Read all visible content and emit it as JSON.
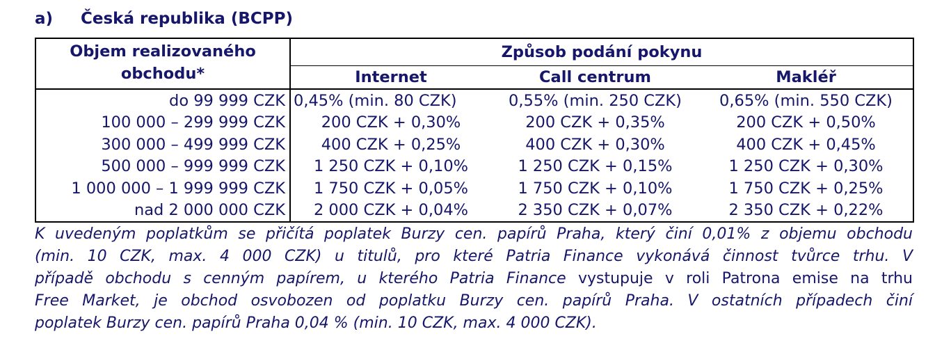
{
  "section": {
    "letter": "a)",
    "title": "Česká republika (BCPP)"
  },
  "table": {
    "volume_header": "Objem realizovaného obchodu*",
    "method_header": "Způsob podání pokynu",
    "channels": [
      "Internet",
      "Call centrum",
      "Makléř"
    ],
    "rows": [
      {
        "volume": "do 99 999 CZK",
        "internet": "0,45% (min. 80 CZK)",
        "call_centrum": "0,55% (min. 250 CZK)",
        "makler": "0,65% (min. 550 CZK)"
      },
      {
        "volume": "100 000 – 299 999 CZK",
        "internet": "200 CZK + 0,30%",
        "call_centrum": "200 CZK + 0,35%",
        "makler": "200 CZK + 0,50%"
      },
      {
        "volume": "300 000 – 499 999 CZK",
        "internet": "400 CZK + 0,25%",
        "call_centrum": "400 CZK + 0,30%",
        "makler": "400 CZK + 0,45%"
      },
      {
        "volume": "500 000 – 999 999 CZK",
        "internet": "1 250 CZK + 0,10%",
        "call_centrum": "1 250 CZK + 0,15%",
        "makler": "1 250 CZK + 0,30%"
      },
      {
        "volume": "1 000 000 – 1 999 999 CZK",
        "internet": "1 750 CZK + 0,05%",
        "call_centrum": "1 750 CZK + 0,10%",
        "makler": "1 750 CZK + 0,25%"
      },
      {
        "volume": "nad 2 000 000 CZK",
        "internet": "2 000 CZK + 0,04%",
        "call_centrum": "2 350 CZK + 0,07%",
        "makler": "2 350 CZK + 0,22%"
      }
    ]
  },
  "note": {
    "lines": [
      "K uvedeným poplatkům se přičítá poplatek Burzy cen. papírů Praha, který činí 0,01% z objemu obchodu",
      "(min. 10 CZK, max. 4 000 CZK) u titulů, pro které Patria Finance vykonává činnost tvůrce trhu. V",
      "případě obchodu s cenným papírem, u kterého Patria Finance ",
      "Free Market, je obchod osvobozen od poplatku Burzy cen. papírů Praha. V ostatních případech činí",
      "poplatek Burzy cen. papírů Praha 0,04 % (min. 10 CZK, max. 4 000 CZK)."
    ],
    "emphasis": "vystupuje v roli Patrona emise na trhu"
  }
}
